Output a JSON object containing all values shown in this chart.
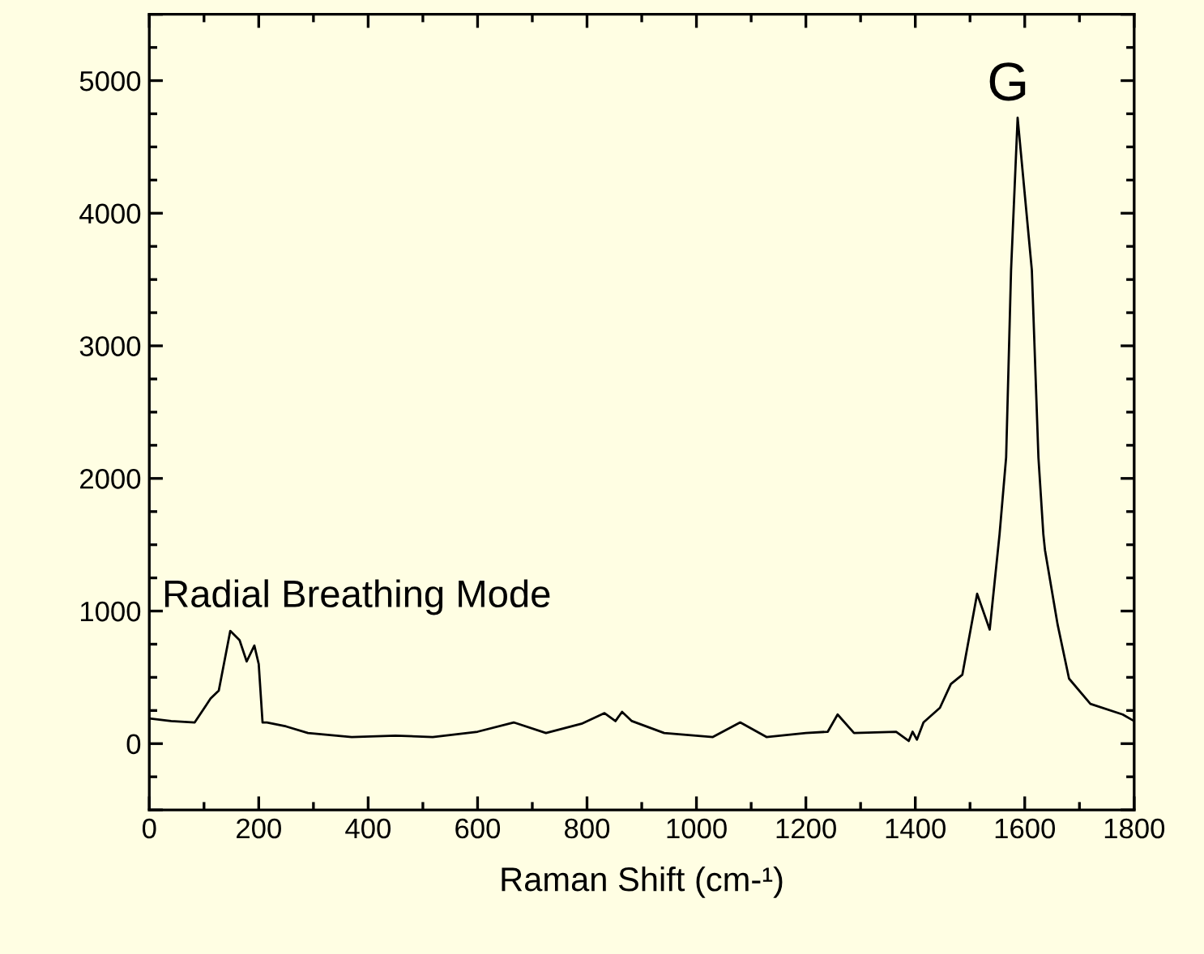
{
  "chart_data": {
    "type": "line",
    "xlabel": "Raman Shift (cm-¹)",
    "x": [
      0,
      40,
      83,
      112,
      127,
      148,
      165,
      178,
      192,
      200,
      207,
      215,
      250,
      290,
      370,
      450,
      518,
      600,
      666,
      725,
      790,
      832,
      852,
      864,
      882,
      941,
      1030,
      1080,
      1128,
      1200,
      1240,
      1258,
      1288,
      1365,
      1388,
      1395,
      1403,
      1415,
      1445,
      1465,
      1486,
      1513,
      1536,
      1554,
      1566,
      1575,
      1587,
      1613,
      1625,
      1634,
      1637,
      1660,
      1681,
      1720,
      1779,
      1800
    ],
    "series": [
      {
        "color": "#000000",
        "values": [
          190,
          170,
          160,
          340,
          400,
          850,
          780,
          620,
          740,
          600,
          160,
          160,
          130,
          80,
          50,
          60,
          50,
          90,
          160,
          80,
          150,
          230,
          170,
          240,
          170,
          80,
          50,
          160,
          50,
          80,
          90,
          220,
          80,
          90,
          20,
          90,
          30,
          160,
          270,
          450,
          520,
          1130,
          860,
          1580,
          2160,
          3570,
          4720,
          3570,
          2160,
          1580,
          1460,
          900,
          490,
          300,
          220,
          170
        ]
      }
    ],
    "xlim": [
      0,
      1800
    ],
    "ylim": [
      -500,
      5500
    ],
    "xticks": [
      0,
      200,
      400,
      600,
      800,
      1000,
      1200,
      1400,
      1600,
      1800
    ],
    "yticks": [
      {
        "value": -500,
        "label": null
      },
      0,
      1000,
      2000,
      3000,
      4000,
      5000,
      {
        "value": 5500,
        "label": null
      }
    ],
    "annotations": [
      "Radial Breathing Mode",
      "G"
    ],
    "grid": false,
    "marker": "none",
    "line_style": "solid"
  }
}
